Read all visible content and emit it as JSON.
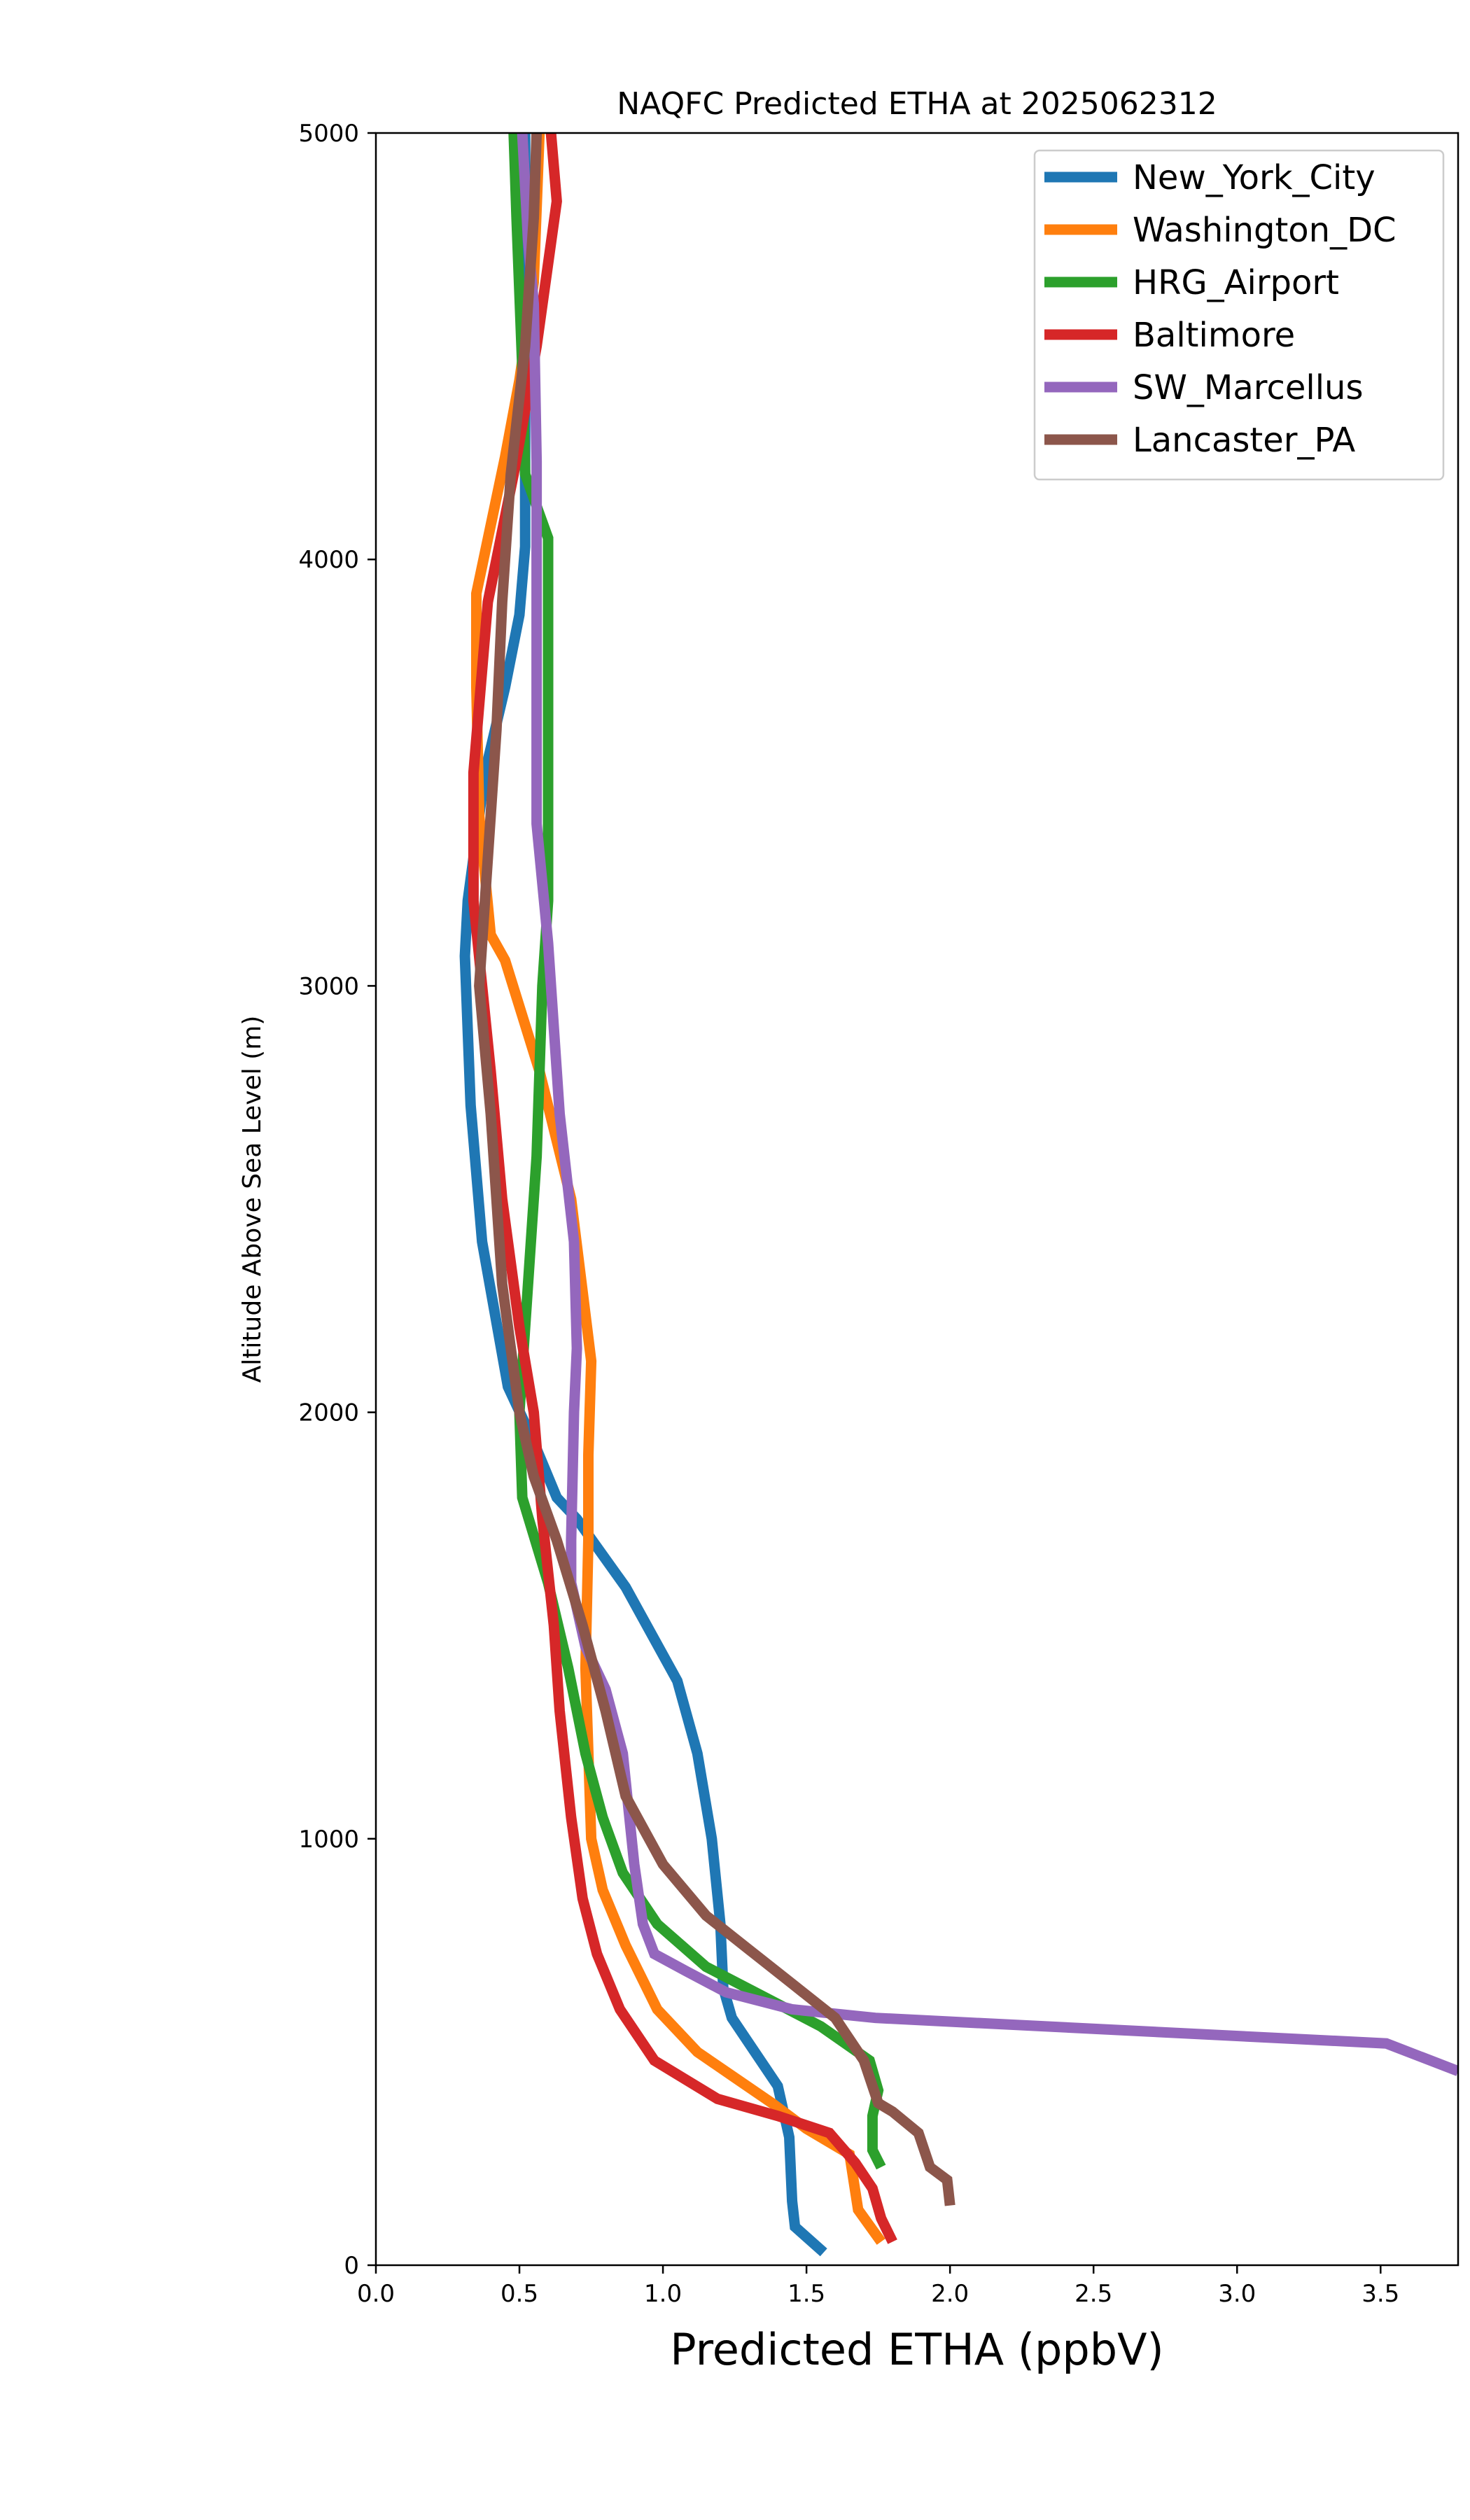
{
  "chart_data": {
    "type": "line",
    "title": "NAQFC Predicted ETHA at 2025062312",
    "xlabel": "Predicted ETHA (ppbV)",
    "ylabel": "Altitude Above Sea Level (m)",
    "xlim": [
      0.0,
      3.77
    ],
    "ylim": [
      0,
      5000
    ],
    "xticks": [
      "0.0",
      "0.5",
      "1.0",
      "1.5",
      "2.0",
      "2.5",
      "3.0",
      "3.5"
    ],
    "xtick_values": [
      0.0,
      0.5,
      1.0,
      1.5,
      2.0,
      2.5,
      3.0,
      3.5
    ],
    "yticks": [
      "0",
      "1000",
      "2000",
      "3000",
      "4000",
      "5000"
    ],
    "ytick_values": [
      0,
      1000,
      2000,
      3000,
      4000,
      5000
    ],
    "grid": false,
    "legend_position": "top-right",
    "series": [
      {
        "name": "New_York_City",
        "color": "#1f77b4",
        "points": [
          [
            1.56,
            30
          ],
          [
            1.46,
            90
          ],
          [
            1.45,
            150
          ],
          [
            1.44,
            300
          ],
          [
            1.4,
            420
          ],
          [
            1.35,
            470
          ],
          [
            1.24,
            580
          ],
          [
            1.21,
            650
          ],
          [
            1.2,
            800
          ],
          [
            1.17,
            1000
          ],
          [
            1.12,
            1200
          ],
          [
            1.05,
            1370
          ],
          [
            0.87,
            1590
          ],
          [
            0.7,
            1750
          ],
          [
            0.63,
            1800
          ],
          [
            0.55,
            1930
          ],
          [
            0.46,
            2060
          ],
          [
            0.37,
            2400
          ],
          [
            0.33,
            2720
          ],
          [
            0.31,
            3070
          ],
          [
            0.32,
            3200
          ],
          [
            0.38,
            3500
          ],
          [
            0.45,
            3700
          ],
          [
            0.5,
            3870
          ],
          [
            0.52,
            4030
          ],
          [
            0.52,
            5000
          ]
        ]
      },
      {
        "name": "Washington_DC",
        "color": "#ff7f0e",
        "points": [
          [
            1.76,
            55
          ],
          [
            1.68,
            130
          ],
          [
            1.65,
            260
          ],
          [
            1.5,
            320
          ],
          [
            1.38,
            380
          ],
          [
            1.25,
            440
          ],
          [
            1.12,
            500
          ],
          [
            0.98,
            600
          ],
          [
            0.87,
            750
          ],
          [
            0.79,
            880
          ],
          [
            0.75,
            1000
          ],
          [
            0.74,
            1200
          ],
          [
            0.73,
            1400
          ],
          [
            0.74,
            1700
          ],
          [
            0.74,
            1900
          ],
          [
            0.75,
            2120
          ],
          [
            0.68,
            2500
          ],
          [
            0.57,
            2800
          ],
          [
            0.45,
            3060
          ],
          [
            0.4,
            3120
          ],
          [
            0.36,
            3400
          ],
          [
            0.35,
            3700
          ],
          [
            0.35,
            3920
          ],
          [
            0.45,
            4240
          ],
          [
            0.5,
            4420
          ],
          [
            0.55,
            4650
          ],
          [
            0.57,
            5000
          ]
        ]
      },
      {
        "name": "HRG_Airport",
        "color": "#2ca02c",
        "points": [
          [
            1.76,
            230
          ],
          [
            1.73,
            270
          ],
          [
            1.73,
            350
          ],
          [
            1.75,
            410
          ],
          [
            1.72,
            480
          ],
          [
            1.55,
            560
          ],
          [
            1.35,
            630
          ],
          [
            1.15,
            700
          ],
          [
            0.98,
            800
          ],
          [
            0.86,
            920
          ],
          [
            0.79,
            1050
          ],
          [
            0.73,
            1200
          ],
          [
            0.67,
            1400
          ],
          [
            0.6,
            1600
          ],
          [
            0.51,
            1800
          ],
          [
            0.5,
            2000
          ],
          [
            0.52,
            2200
          ],
          [
            0.54,
            2400
          ],
          [
            0.56,
            2600
          ],
          [
            0.57,
            2800
          ],
          [
            0.58,
            3000
          ],
          [
            0.6,
            3200
          ],
          [
            0.6,
            3500
          ],
          [
            0.6,
            4050
          ],
          [
            0.52,
            4200
          ],
          [
            0.51,
            4450
          ],
          [
            0.49,
            4800
          ],
          [
            0.48,
            5000
          ]
        ]
      },
      {
        "name": "Baltimore",
        "color": "#d62728",
        "points": [
          [
            1.8,
            55
          ],
          [
            1.76,
            110
          ],
          [
            1.73,
            180
          ],
          [
            1.67,
            240
          ],
          [
            1.58,
            310
          ],
          [
            1.4,
            350
          ],
          [
            1.19,
            390
          ],
          [
            0.97,
            480
          ],
          [
            0.85,
            600
          ],
          [
            0.77,
            730
          ],
          [
            0.72,
            860
          ],
          [
            0.68,
            1050
          ],
          [
            0.64,
            1300
          ],
          [
            0.62,
            1500
          ],
          [
            0.58,
            1750
          ],
          [
            0.55,
            2000
          ],
          [
            0.5,
            2200
          ],
          [
            0.44,
            2500
          ],
          [
            0.4,
            2800
          ],
          [
            0.37,
            3000
          ],
          [
            0.34,
            3200
          ],
          [
            0.34,
            3500
          ],
          [
            0.39,
            3900
          ],
          [
            0.48,
            4200
          ],
          [
            0.56,
            4500
          ],
          [
            0.63,
            4840
          ],
          [
            0.61,
            5000
          ]
        ]
      },
      {
        "name": "SW_Marcellus",
        "color": "#9467bd",
        "points": [
          [
            3.77,
            455
          ],
          [
            3.52,
            520
          ],
          [
            1.74,
            580
          ],
          [
            1.45,
            600
          ],
          [
            1.22,
            640
          ],
          [
            1.08,
            690
          ],
          [
            0.97,
            730
          ],
          [
            0.93,
            800
          ],
          [
            0.9,
            940
          ],
          [
            0.86,
            1200
          ],
          [
            0.8,
            1350
          ],
          [
            0.73,
            1450
          ],
          [
            0.68,
            1600
          ],
          [
            0.68,
            1700
          ],
          [
            0.69,
            2000
          ],
          [
            0.7,
            2150
          ],
          [
            0.69,
            2400
          ],
          [
            0.64,
            2700
          ],
          [
            0.6,
            3100
          ],
          [
            0.56,
            3380
          ],
          [
            0.56,
            3800
          ],
          [
            0.56,
            4230
          ],
          [
            0.55,
            4600
          ],
          [
            0.53,
            4750
          ],
          [
            0.51,
            5000
          ]
        ]
      },
      {
        "name": "Lancaster_PA",
        "color": "#8c564b",
        "points": [
          [
            2.0,
            140
          ],
          [
            1.99,
            200
          ],
          [
            1.93,
            230
          ],
          [
            1.89,
            310
          ],
          [
            1.8,
            360
          ],
          [
            1.75,
            380
          ],
          [
            1.7,
            480
          ],
          [
            1.6,
            580
          ],
          [
            1.45,
            660
          ],
          [
            1.3,
            740
          ],
          [
            1.15,
            820
          ],
          [
            1.0,
            940
          ],
          [
            0.87,
            1100
          ],
          [
            0.8,
            1300
          ],
          [
            0.72,
            1500
          ],
          [
            0.63,
            1700
          ],
          [
            0.55,
            1850
          ],
          [
            0.5,
            2000
          ],
          [
            0.44,
            2300
          ],
          [
            0.4,
            2700
          ],
          [
            0.36,
            3000
          ],
          [
            0.39,
            3300
          ],
          [
            0.42,
            3600
          ],
          [
            0.44,
            3900
          ],
          [
            0.47,
            4200
          ],
          [
            0.52,
            4500
          ],
          [
            0.55,
            4800
          ],
          [
            0.56,
            5000
          ]
        ]
      }
    ]
  }
}
